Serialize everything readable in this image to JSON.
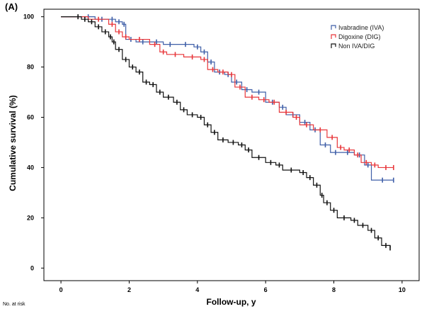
{
  "panel_label": "(A)",
  "footnote": "No. at risk",
  "chart_data": {
    "type": "line",
    "title": "",
    "xlabel": "Follow-up, y",
    "ylabel": "Cumulative survival (%)",
    "xlim": [
      -0.5,
      10.5
    ],
    "ylim": [
      -5,
      103
    ],
    "xticks": [
      0,
      2,
      4,
      6,
      8,
      10
    ],
    "yticks": [
      0,
      20,
      40,
      60,
      80,
      100
    ],
    "grid": false,
    "legend": "top-right",
    "series": [
      {
        "name": "Ivabradine (IVA)",
        "color": "#3f5fa8",
        "points": [
          [
            0,
            100
          ],
          [
            0.6,
            100
          ],
          [
            1.0,
            99
          ],
          [
            1.4,
            99
          ],
          [
            1.6,
            98
          ],
          [
            1.8,
            97
          ],
          [
            1.9,
            91
          ],
          [
            2.2,
            90
          ],
          [
            2.6,
            90
          ],
          [
            3.0,
            89
          ],
          [
            3.4,
            89
          ],
          [
            3.9,
            88
          ],
          [
            4.1,
            86
          ],
          [
            4.3,
            82
          ],
          [
            4.5,
            78
          ],
          [
            4.8,
            77
          ],
          [
            5.0,
            74
          ],
          [
            5.3,
            71
          ],
          [
            5.6,
            70
          ],
          [
            6.0,
            66
          ],
          [
            6.4,
            64
          ],
          [
            6.6,
            61
          ],
          [
            7.0,
            58
          ],
          [
            7.3,
            55
          ],
          [
            7.6,
            49
          ],
          [
            7.9,
            46
          ],
          [
            8.2,
            46
          ],
          [
            8.6,
            45
          ],
          [
            8.9,
            41
          ],
          [
            9.1,
            35
          ],
          [
            9.75,
            35
          ]
        ]
      },
      {
        "name": "Digoxine (DIG)",
        "color": "#e8363a",
        "points": [
          [
            0,
            100
          ],
          [
            0.8,
            99
          ],
          [
            1.4,
            97
          ],
          [
            1.6,
            94
          ],
          [
            1.8,
            92
          ],
          [
            2.0,
            91
          ],
          [
            2.6,
            89
          ],
          [
            2.9,
            86
          ],
          [
            3.1,
            85
          ],
          [
            3.6,
            84
          ],
          [
            4.1,
            83
          ],
          [
            4.3,
            79
          ],
          [
            4.6,
            78
          ],
          [
            4.9,
            77
          ],
          [
            5.1,
            72
          ],
          [
            5.4,
            68
          ],
          [
            5.8,
            67
          ],
          [
            6.1,
            66
          ],
          [
            6.4,
            62
          ],
          [
            6.8,
            60
          ],
          [
            7.0,
            57
          ],
          [
            7.4,
            55
          ],
          [
            7.8,
            52
          ],
          [
            8.1,
            48
          ],
          [
            8.3,
            47
          ],
          [
            8.6,
            45
          ],
          [
            8.8,
            42
          ],
          [
            9.1,
            41
          ],
          [
            9.3,
            40
          ],
          [
            9.75,
            40
          ]
        ]
      },
      {
        "name": "Non IVA/DIG",
        "color": "#111111",
        "points": [
          [
            0,
            100
          ],
          [
            0.4,
            100
          ],
          [
            0.6,
            99
          ],
          [
            0.8,
            98
          ],
          [
            1.0,
            96
          ],
          [
            1.2,
            94
          ],
          [
            1.4,
            92
          ],
          [
            1.5,
            90
          ],
          [
            1.6,
            87
          ],
          [
            1.8,
            83
          ],
          [
            2.0,
            80
          ],
          [
            2.2,
            78
          ],
          [
            2.4,
            74
          ],
          [
            2.6,
            73
          ],
          [
            2.8,
            70
          ],
          [
            3.0,
            68
          ],
          [
            3.3,
            66
          ],
          [
            3.5,
            63
          ],
          [
            3.7,
            61
          ],
          [
            4.0,
            60
          ],
          [
            4.2,
            57
          ],
          [
            4.4,
            54
          ],
          [
            4.6,
            51
          ],
          [
            4.9,
            50
          ],
          [
            5.2,
            49
          ],
          [
            5.4,
            47
          ],
          [
            5.6,
            44
          ],
          [
            6.0,
            42
          ],
          [
            6.3,
            41
          ],
          [
            6.5,
            39
          ],
          [
            7.0,
            38
          ],
          [
            7.2,
            36
          ],
          [
            7.4,
            33
          ],
          [
            7.6,
            29
          ],
          [
            7.7,
            26
          ],
          [
            7.9,
            23
          ],
          [
            8.1,
            20
          ],
          [
            8.5,
            19
          ],
          [
            8.7,
            17
          ],
          [
            9.0,
            15
          ],
          [
            9.2,
            12
          ],
          [
            9.4,
            9
          ],
          [
            9.65,
            8
          ]
        ]
      }
    ]
  }
}
